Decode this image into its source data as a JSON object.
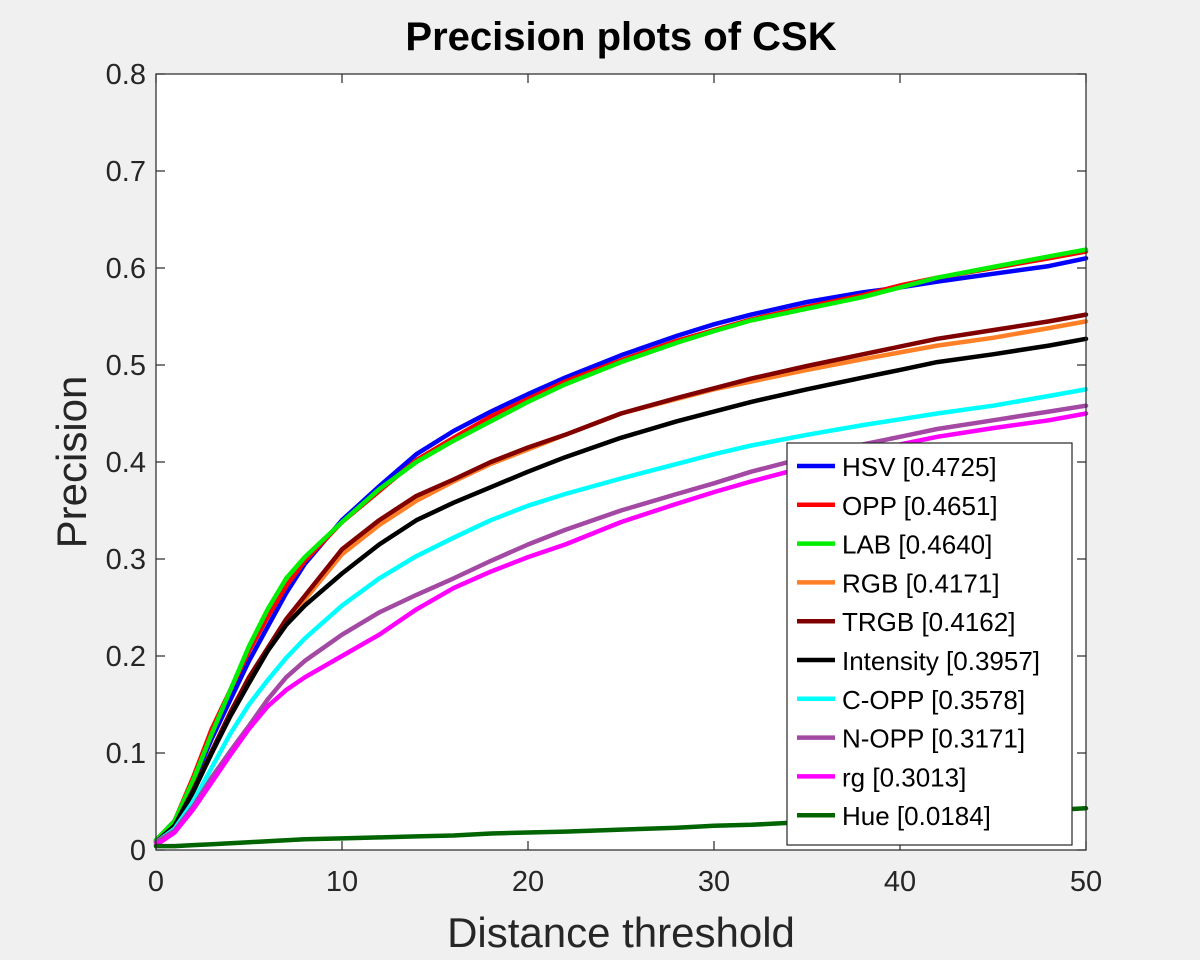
{
  "chart_data": {
    "type": "line",
    "title": "Precision plots of CSK",
    "xlabel": "Distance threshold",
    "ylabel": "Precision",
    "xlim": [
      0,
      50
    ],
    "ylim": [
      0,
      0.8
    ],
    "xticks": [
      0,
      10,
      20,
      30,
      40,
      50
    ],
    "yticks": [
      0,
      0.1,
      0.2,
      0.3,
      0.4,
      0.5,
      0.6,
      0.7,
      0.8
    ],
    "xtick_labels": [
      "0",
      "10",
      "20",
      "30",
      "40",
      "50"
    ],
    "ytick_labels": [
      "0",
      "0.1",
      "0.2",
      "0.3",
      "0.4",
      "0.5",
      "0.6",
      "0.7",
      "0.8"
    ],
    "grid": false,
    "legend_position": "lower-right",
    "x": [
      0,
      1,
      2,
      3,
      4,
      5,
      6,
      7,
      8,
      10,
      12,
      14,
      16,
      18,
      20,
      22,
      25,
      28,
      30,
      32,
      35,
      38,
      40,
      42,
      45,
      48,
      50
    ],
    "series": [
      {
        "name": "HSV [0.4725]",
        "color": "#0000ff",
        "values": [
          0.01,
          0.03,
          0.07,
          0.115,
          0.155,
          0.195,
          0.23,
          0.265,
          0.295,
          0.34,
          0.375,
          0.408,
          0.432,
          0.452,
          0.47,
          0.487,
          0.51,
          0.53,
          0.542,
          0.552,
          0.565,
          0.575,
          0.58,
          0.586,
          0.594,
          0.602,
          0.61
        ]
      },
      {
        "name": "OPP [0.4651]",
        "color": "#ff0000",
        "values": [
          0.01,
          0.03,
          0.075,
          0.125,
          0.165,
          0.205,
          0.24,
          0.272,
          0.298,
          0.338,
          0.37,
          0.402,
          0.425,
          0.447,
          0.465,
          0.483,
          0.505,
          0.525,
          0.536,
          0.547,
          0.56,
          0.572,
          0.582,
          0.59,
          0.6,
          0.61,
          0.617
        ]
      },
      {
        "name": "LAB [0.4640]",
        "color": "#00ee00",
        "values": [
          0.01,
          0.03,
          0.072,
          0.12,
          0.165,
          0.21,
          0.248,
          0.28,
          0.302,
          0.338,
          0.372,
          0.4,
          0.422,
          0.442,
          0.462,
          0.48,
          0.503,
          0.523,
          0.535,
          0.546,
          0.558,
          0.57,
          0.58,
          0.59,
          0.601,
          0.612,
          0.619
        ]
      },
      {
        "name": "RGB [0.4171]",
        "color": "#ff7f27",
        "values": [
          0.008,
          0.025,
          0.06,
          0.1,
          0.14,
          0.175,
          0.205,
          0.235,
          0.258,
          0.305,
          0.335,
          0.36,
          0.38,
          0.398,
          0.413,
          0.428,
          0.45,
          0.465,
          0.475,
          0.483,
          0.495,
          0.506,
          0.513,
          0.52,
          0.528,
          0.538,
          0.545
        ]
      },
      {
        "name": "TRGB [0.4162]",
        "color": "#800000",
        "values": [
          0.008,
          0.025,
          0.062,
          0.102,
          0.142,
          0.178,
          0.208,
          0.238,
          0.262,
          0.31,
          0.34,
          0.365,
          0.382,
          0.4,
          0.415,
          0.428,
          0.45,
          0.466,
          0.476,
          0.486,
          0.499,
          0.511,
          0.519,
          0.527,
          0.536,
          0.545,
          0.552
        ]
      },
      {
        "name": "Intensity [0.3957]",
        "color": "#000000",
        "values": [
          0.008,
          0.025,
          0.06,
          0.1,
          0.138,
          0.172,
          0.205,
          0.232,
          0.252,
          0.285,
          0.315,
          0.34,
          0.358,
          0.374,
          0.39,
          0.405,
          0.425,
          0.442,
          0.452,
          0.462,
          0.475,
          0.487,
          0.495,
          0.503,
          0.511,
          0.52,
          0.527
        ]
      },
      {
        "name": "C-OPP [0.3578]",
        "color": "#00ffff",
        "values": [
          0.008,
          0.022,
          0.05,
          0.085,
          0.12,
          0.15,
          0.175,
          0.198,
          0.218,
          0.252,
          0.28,
          0.303,
          0.322,
          0.34,
          0.355,
          0.367,
          0.383,
          0.398,
          0.408,
          0.417,
          0.428,
          0.438,
          0.444,
          0.45,
          0.458,
          0.468,
          0.475
        ]
      },
      {
        "name": "N-OPP [0.3171]",
        "color": "#a349a4",
        "values": [
          0.008,
          0.02,
          0.045,
          0.075,
          0.102,
          0.128,
          0.155,
          0.178,
          0.195,
          0.222,
          0.245,
          0.263,
          0.28,
          0.298,
          0.315,
          0.33,
          0.35,
          0.367,
          0.378,
          0.39,
          0.405,
          0.418,
          0.426,
          0.434,
          0.443,
          0.452,
          0.458
        ]
      },
      {
        "name": "rg [0.3013]",
        "color": "#ff00ff",
        "values": [
          0.005,
          0.018,
          0.042,
          0.07,
          0.098,
          0.125,
          0.148,
          0.165,
          0.178,
          0.2,
          0.222,
          0.248,
          0.27,
          0.287,
          0.302,
          0.315,
          0.338,
          0.357,
          0.369,
          0.38,
          0.395,
          0.408,
          0.418,
          0.426,
          0.435,
          0.443,
          0.45
        ]
      },
      {
        "name": "Hue [0.0184]",
        "color": "#006400",
        "values": [
          0.004,
          0.004,
          0.005,
          0.006,
          0.007,
          0.008,
          0.009,
          0.01,
          0.011,
          0.012,
          0.013,
          0.014,
          0.015,
          0.017,
          0.018,
          0.019,
          0.021,
          0.023,
          0.025,
          0.026,
          0.029,
          0.031,
          0.033,
          0.035,
          0.038,
          0.041,
          0.043
        ]
      }
    ]
  }
}
